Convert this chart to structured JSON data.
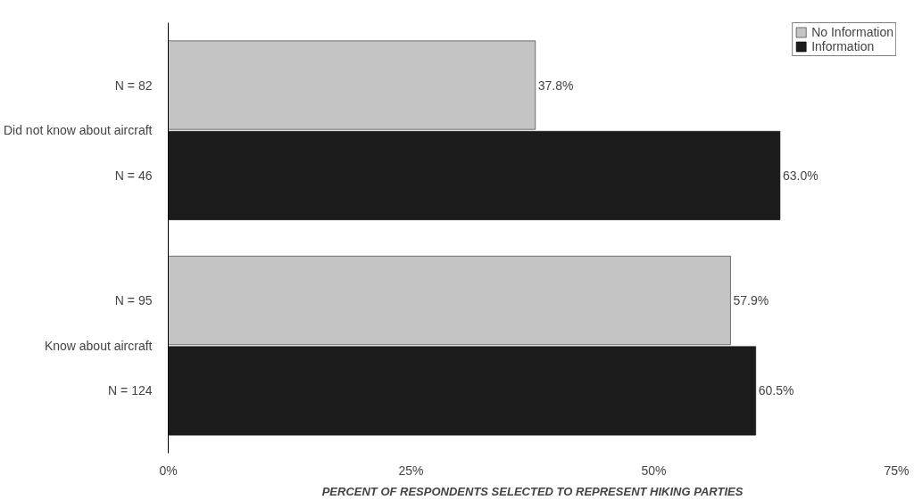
{
  "chart_data": {
    "type": "bar",
    "orientation": "horizontal",
    "categories": [
      "Did not know about aircraft",
      "Know about aircraft"
    ],
    "series": [
      {
        "name": "No Information",
        "color": "#c4c4c4",
        "values": [
          37.8,
          57.9
        ],
        "value_labels": [
          "37.8%",
          "57.9%"
        ]
      },
      {
        "name": "Information",
        "color": "#1c1c1c",
        "values": [
          63.0,
          60.5
        ],
        "value_labels": [
          "63.0%",
          "60.5%"
        ]
      }
    ],
    "xlabel": "PERCENT OF RESPONDENTS SELECTED TO REPRESENT HIKING PARTIES",
    "xlim": [
      0,
      75
    ],
    "xticks": [
      {
        "value": 0,
        "label": "0%"
      },
      {
        "value": 25,
        "label": "25%"
      },
      {
        "value": 50,
        "label": "50%"
      },
      {
        "value": 75,
        "label": "75%"
      }
    ],
    "annotations": [
      "N = 82",
      "N = 46",
      "N = 95",
      "N = 124"
    ],
    "legend": "top right",
    "grid": false
  }
}
